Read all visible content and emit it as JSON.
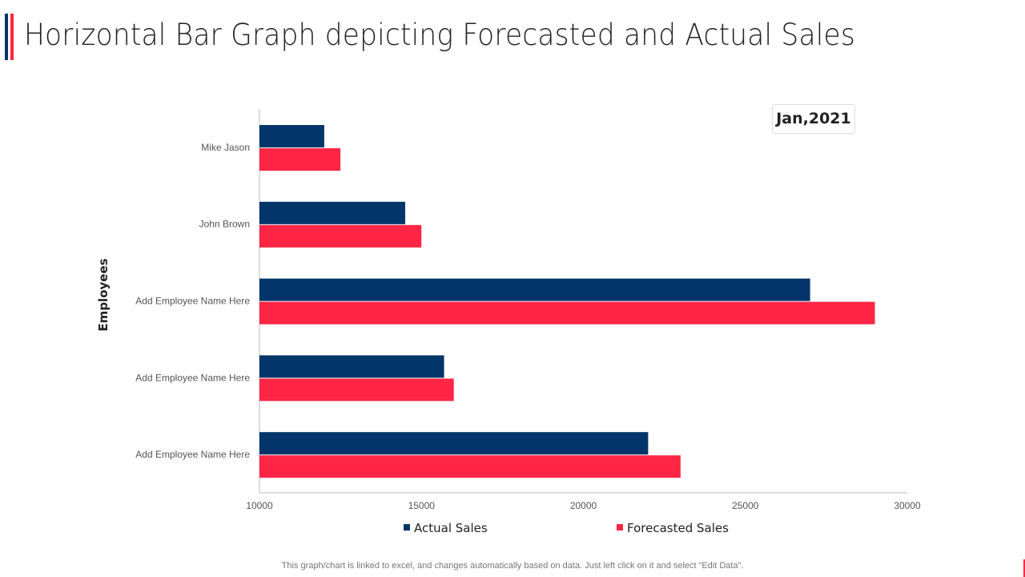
{
  "title": "Horizontal Bar Graph depicting Forecasted and Actual Sales",
  "badge": "Jan,2021",
  "footer": "This graph/chart is linked to excel,  and changes automatically based on data. Just left click on it and select “Edit Data”.",
  "colors": {
    "actual": "#03356a",
    "forecast": "#ff2545",
    "accent_blue": "#03356a",
    "accent_red": "#ff2545"
  },
  "chart_data": {
    "type": "bar",
    "orientation": "horizontal",
    "title": "",
    "ylabel": "Employees",
    "xlabel": "",
    "xlim": [
      10000,
      30000
    ],
    "xticks": [
      10000,
      15000,
      20000,
      25000,
      30000
    ],
    "categories": [
      "Mike Jason",
      "John Brown",
      "Add Employee Name Here",
      "Add Employee Name Here",
      "Add Employee Name Here"
    ],
    "series": [
      {
        "name": "Actual Sales",
        "values": [
          12000,
          14500,
          27000,
          15700,
          22000
        ]
      },
      {
        "name": "Forecasted Sales",
        "values": [
          12500,
          15000,
          29000,
          16000,
          23000
        ]
      }
    ],
    "legend": "bottom",
    "grid": false
  }
}
